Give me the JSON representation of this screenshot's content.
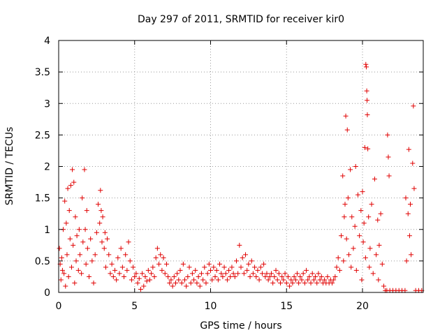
{
  "chart_data": {
    "type": "scatter",
    "title": "Day 297 of 2011, SRMTID for receiver kir0",
    "xlabel": "GPS time / hours",
    "ylabel": "SRMTID / TECUs",
    "xlim": [
      0,
      24
    ],
    "ylim": [
      0,
      4
    ],
    "x_ticks": [
      "0",
      "5",
      "10",
      "15",
      "20"
    ],
    "y_ticks": [
      "0",
      "0.5",
      "1",
      "1.5",
      "2",
      "2.5",
      "3",
      "3.5",
      "4"
    ],
    "grid": true,
    "marker": "+",
    "series": [
      {
        "name": "SRMTID",
        "color": "#e00000",
        "points": [
          [
            0.05,
            0.7
          ],
          [
            0.1,
            0.45
          ],
          [
            0.15,
            0.2
          ],
          [
            0.2,
            0.55
          ],
          [
            0.25,
            0.35
          ],
          [
            0.3,
            1.0
          ],
          [
            0.35,
            0.3
          ],
          [
            0.4,
            1.45
          ],
          [
            0.45,
            0.1
          ],
          [
            0.5,
            1.1
          ],
          [
            0.55,
            0.6
          ],
          [
            0.6,
            1.65
          ],
          [
            0.65,
            0.25
          ],
          [
            0.7,
            1.3
          ],
          [
            0.75,
            0.85
          ],
          [
            0.8,
            1.7
          ],
          [
            0.85,
            0.4
          ],
          [
            0.9,
            1.95
          ],
          [
            0.95,
            0.75
          ],
          [
            1.0,
            1.75
          ],
          [
            1.05,
            0.15
          ],
          [
            1.1,
            1.2
          ],
          [
            1.15,
            0.5
          ],
          [
            1.2,
            0.9
          ],
          [
            1.3,
            0.35
          ],
          [
            1.35,
            1.0
          ],
          [
            1.4,
            0.6
          ],
          [
            1.5,
            0.3
          ],
          [
            1.55,
            1.5
          ],
          [
            1.6,
            0.8
          ],
          [
            1.7,
            1.95
          ],
          [
            1.75,
            1.0
          ],
          [
            1.8,
            0.45
          ],
          [
            1.85,
            1.3
          ],
          [
            1.9,
            0.7
          ],
          [
            2.0,
            0.25
          ],
          [
            2.1,
            0.85
          ],
          [
            2.2,
            0.5
          ],
          [
            2.3,
            0.15
          ],
          [
            2.4,
            0.6
          ],
          [
            2.5,
            0.95
          ],
          [
            2.6,
            1.4
          ],
          [
            2.7,
            1.1
          ],
          [
            2.75,
            1.62
          ],
          [
            2.8,
            1.3
          ],
          [
            2.85,
            0.8
          ],
          [
            2.9,
            1.2
          ],
          [
            3.0,
            0.7
          ],
          [
            3.05,
            0.95
          ],
          [
            3.1,
            0.4
          ],
          [
            3.2,
            0.85
          ],
          [
            3.3,
            0.6
          ],
          [
            3.4,
            0.3
          ],
          [
            3.5,
            0.45
          ],
          [
            3.6,
            0.25
          ],
          [
            3.7,
            0.35
          ],
          [
            3.8,
            0.2
          ],
          [
            3.9,
            0.55
          ],
          [
            4.0,
            0.3
          ],
          [
            4.1,
            0.7
          ],
          [
            4.2,
            0.4
          ],
          [
            4.3,
            0.25
          ],
          [
            4.4,
            0.6
          ],
          [
            4.5,
            0.35
          ],
          [
            4.6,
            0.8
          ],
          [
            4.7,
            0.5
          ],
          [
            4.8,
            0.2
          ],
          [
            4.9,
            0.4
          ],
          [
            5.0,
            0.25
          ],
          [
            5.1,
            0.3
          ],
          [
            5.2,
            0.15
          ],
          [
            5.3,
            0.22
          ],
          [
            5.4,
            0.05
          ],
          [
            5.5,
            0.3
          ],
          [
            5.6,
            0.1
          ],
          [
            5.7,
            0.25
          ],
          [
            5.8,
            0.18
          ],
          [
            5.9,
            0.35
          ],
          [
            6.0,
            0.2
          ],
          [
            6.1,
            0.3
          ],
          [
            6.2,
            0.4
          ],
          [
            6.3,
            0.25
          ],
          [
            6.4,
            0.55
          ],
          [
            6.5,
            0.7
          ],
          [
            6.6,
            0.45
          ],
          [
            6.7,
            0.6
          ],
          [
            6.8,
            0.35
          ],
          [
            6.9,
            0.55
          ],
          [
            7.0,
            0.3
          ],
          [
            7.1,
            0.45
          ],
          [
            7.2,
            0.25
          ],
          [
            7.3,
            0.15
          ],
          [
            7.4,
            0.2
          ],
          [
            7.5,
            0.1
          ],
          [
            7.6,
            0.25
          ],
          [
            7.7,
            0.15
          ],
          [
            7.8,
            0.3
          ],
          [
            7.9,
            0.2
          ],
          [
            8.0,
            0.35
          ],
          [
            8.1,
            0.15
          ],
          [
            8.2,
            0.45
          ],
          [
            8.3,
            0.2
          ],
          [
            8.4,
            0.1
          ],
          [
            8.5,
            0.25
          ],
          [
            8.6,
            0.4
          ],
          [
            8.7,
            0.15
          ],
          [
            8.8,
            0.3
          ],
          [
            8.9,
            0.2
          ],
          [
            9.0,
            0.35
          ],
          [
            9.1,
            0.15
          ],
          [
            9.2,
            0.25
          ],
          [
            9.3,
            0.1
          ],
          [
            9.4,
            0.3
          ],
          [
            9.5,
            0.2
          ],
          [
            9.6,
            0.4
          ],
          [
            9.7,
            0.15
          ],
          [
            9.8,
            0.3
          ],
          [
            9.9,
            0.45
          ],
          [
            10.0,
            0.35
          ],
          [
            10.1,
            0.2
          ],
          [
            10.2,
            0.4
          ],
          [
            10.3,
            0.25
          ],
          [
            10.4,
            0.35
          ],
          [
            10.5,
            0.2
          ],
          [
            10.6,
            0.45
          ],
          [
            10.7,
            0.3
          ],
          [
            10.8,
            0.25
          ],
          [
            10.9,
            0.4
          ],
          [
            11.0,
            0.3
          ],
          [
            11.1,
            0.2
          ],
          [
            11.2,
            0.35
          ],
          [
            11.3,
            0.25
          ],
          [
            11.4,
            0.4
          ],
          [
            11.5,
            0.3
          ],
          [
            11.6,
            0.25
          ],
          [
            11.7,
            0.5
          ],
          [
            11.8,
            0.3
          ],
          [
            11.9,
            0.75
          ],
          [
            12.0,
            0.4
          ],
          [
            12.1,
            0.55
          ],
          [
            12.2,
            0.3
          ],
          [
            12.3,
            0.6
          ],
          [
            12.4,
            0.35
          ],
          [
            12.5,
            0.45
          ],
          [
            12.6,
            0.25
          ],
          [
            12.7,
            0.5
          ],
          [
            12.8,
            0.3
          ],
          [
            12.9,
            0.4
          ],
          [
            13.0,
            0.25
          ],
          [
            13.1,
            0.35
          ],
          [
            13.2,
            0.2
          ],
          [
            13.3,
            0.4
          ],
          [
            13.4,
            0.3
          ],
          [
            13.5,
            0.45
          ],
          [
            13.6,
            0.25
          ],
          [
            13.7,
            0.3
          ],
          [
            13.8,
            0.2
          ],
          [
            13.9,
            0.25
          ],
          [
            14.0,
            0.3
          ],
          [
            14.1,
            0.15
          ],
          [
            14.2,
            0.25
          ],
          [
            14.3,
            0.35
          ],
          [
            14.4,
            0.2
          ],
          [
            14.5,
            0.3
          ],
          [
            14.6,
            0.15
          ],
          [
            14.7,
            0.25
          ],
          [
            14.8,
            0.2
          ],
          [
            14.9,
            0.3
          ],
          [
            15.0,
            0.15
          ],
          [
            15.1,
            0.25
          ],
          [
            15.2,
            0.1
          ],
          [
            15.3,
            0.2
          ],
          [
            15.4,
            0.15
          ],
          [
            15.5,
            0.25
          ],
          [
            15.6,
            0.2
          ],
          [
            15.7,
            0.3
          ],
          [
            15.8,
            0.15
          ],
          [
            15.9,
            0.25
          ],
          [
            16.0,
            0.2
          ],
          [
            16.1,
            0.3
          ],
          [
            16.2,
            0.15
          ],
          [
            16.3,
            0.35
          ],
          [
            16.4,
            0.2
          ],
          [
            16.5,
            0.25
          ],
          [
            16.6,
            0.15
          ],
          [
            16.7,
            0.3
          ],
          [
            16.8,
            0.2
          ],
          [
            16.9,
            0.25
          ],
          [
            17.0,
            0.15
          ],
          [
            17.1,
            0.3
          ],
          [
            17.2,
            0.2
          ],
          [
            17.3,
            0.25
          ],
          [
            17.4,
            0.15
          ],
          [
            17.5,
            0.2
          ],
          [
            17.6,
            0.15
          ],
          [
            17.7,
            0.25
          ],
          [
            17.8,
            0.15
          ],
          [
            17.9,
            0.2
          ],
          [
            18.0,
            0.15
          ],
          [
            18.1,
            0.2
          ],
          [
            18.2,
            0.25
          ],
          [
            18.3,
            0.4
          ],
          [
            18.4,
            0.55
          ],
          [
            18.5,
            0.35
          ],
          [
            18.6,
            0.9
          ],
          [
            18.7,
            1.85
          ],
          [
            18.75,
            0.5
          ],
          [
            18.8,
            1.2
          ],
          [
            18.85,
            1.4
          ],
          [
            18.9,
            2.8
          ],
          [
            18.95,
            0.85
          ],
          [
            19.0,
            2.58
          ],
          [
            19.05,
            1.5
          ],
          [
            19.1,
            0.6
          ],
          [
            19.2,
            1.95
          ],
          [
            19.25,
            0.4
          ],
          [
            19.3,
            1.2
          ],
          [
            19.4,
            0.7
          ],
          [
            19.5,
            1.05
          ],
          [
            19.55,
            2.0
          ],
          [
            19.6,
            0.35
          ],
          [
            19.7,
            1.55
          ],
          [
            19.8,
            0.9
          ],
          [
            19.9,
            1.3
          ],
          [
            19.95,
            0.2
          ],
          [
            20.0,
            1.6
          ],
          [
            20.05,
            0.8
          ],
          [
            20.1,
            1.1
          ],
          [
            20.15,
            2.3
          ],
          [
            20.2,
            0.55
          ],
          [
            20.22,
            3.62
          ],
          [
            20.25,
            3.58
          ],
          [
            20.28,
            3.2
          ],
          [
            20.3,
            3.05
          ],
          [
            20.32,
            2.82
          ],
          [
            20.35,
            2.28
          ],
          [
            20.4,
            1.2
          ],
          [
            20.45,
            0.4
          ],
          [
            20.5,
            0.7
          ],
          [
            20.6,
            1.4
          ],
          [
            20.7,
            0.3
          ],
          [
            20.8,
            1.8
          ],
          [
            20.9,
            0.6
          ],
          [
            21.0,
            1.15
          ],
          [
            21.05,
            0.2
          ],
          [
            21.1,
            0.75
          ],
          [
            21.2,
            1.25
          ],
          [
            21.3,
            0.45
          ],
          [
            21.4,
            0.1
          ],
          [
            21.5,
            0.03
          ],
          [
            21.6,
            0.03
          ],
          [
            21.65,
            2.5
          ],
          [
            21.7,
            2.15
          ],
          [
            21.75,
            1.85
          ],
          [
            21.8,
            0.03
          ],
          [
            22.0,
            0.03
          ],
          [
            22.2,
            0.03
          ],
          [
            22.4,
            0.03
          ],
          [
            22.6,
            0.03
          ],
          [
            22.8,
            0.03
          ],
          [
            22.85,
            1.5
          ],
          [
            22.9,
            0.5
          ],
          [
            23.0,
            1.25
          ],
          [
            23.05,
            2.27
          ],
          [
            23.1,
            0.9
          ],
          [
            23.15,
            1.4
          ],
          [
            23.2,
            0.6
          ],
          [
            23.3,
            2.05
          ],
          [
            23.35,
            2.96
          ],
          [
            23.4,
            1.65
          ],
          [
            23.5,
            0.03
          ],
          [
            23.7,
            0.03
          ],
          [
            23.9,
            0.03
          ]
        ]
      }
    ]
  }
}
